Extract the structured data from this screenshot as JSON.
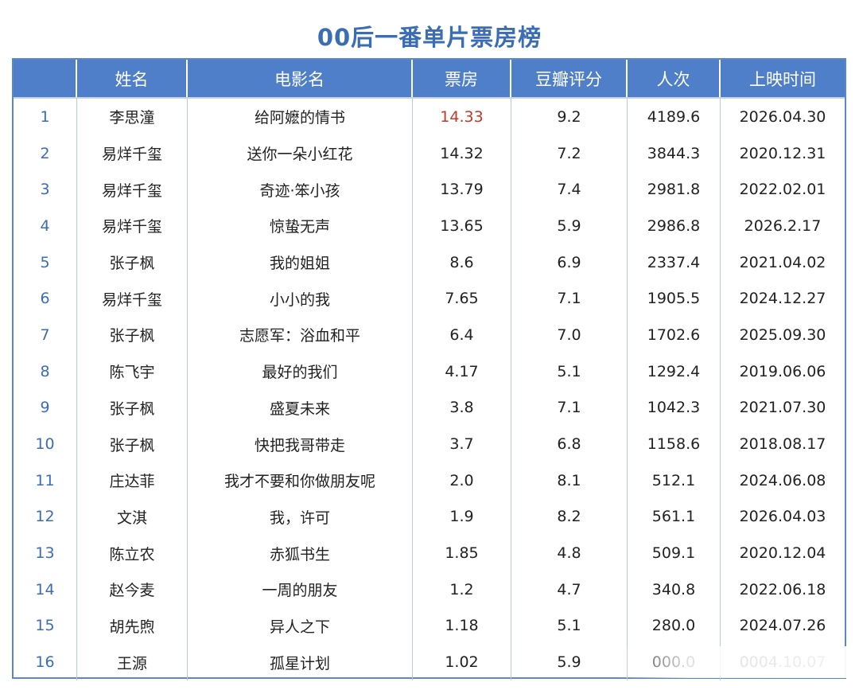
{
  "title": "00后一番单片票房榜",
  "columns": [
    "",
    "姓名",
    "电影名",
    "票房",
    "豆瓣评分",
    "人次",
    "上映时间"
  ],
  "rows": [
    {
      "rank": "1",
      "name": "李思潼",
      "film": "给阿嬷的情书",
      "box": "14.33",
      "score": "9.2",
      "people": "4189.6",
      "date": "2026.04.30"
    },
    {
      "rank": "2",
      "name": "易烊千玺",
      "film": "送你一朵小红花",
      "box": "14.32",
      "score": "7.2",
      "people": "3844.3",
      "date": "2020.12.31"
    },
    {
      "rank": "3",
      "name": "易烊千玺",
      "film": "奇迹·笨小孩",
      "box": "13.79",
      "score": "7.4",
      "people": "2981.8",
      "date": "2022.02.01"
    },
    {
      "rank": "4",
      "name": "易烊千玺",
      "film": "惊蛰无声",
      "box": "13.65",
      "score": "5.9",
      "people": "2986.8",
      "date": "2026.2.17"
    },
    {
      "rank": "5",
      "name": "张子枫",
      "film": "我的姐姐",
      "box": "8.6",
      "score": "6.9",
      "people": "2337.4",
      "date": "2021.04.02"
    },
    {
      "rank": "6",
      "name": "易烊千玺",
      "film": "小小的我",
      "box": "7.65",
      "score": "7.1",
      "people": "1905.5",
      "date": "2024.12.27"
    },
    {
      "rank": "7",
      "name": "张子枫",
      "film": "志愿军：浴血和平",
      "box": "6.4",
      "score": "7.0",
      "people": "1702.6",
      "date": "2025.09.30"
    },
    {
      "rank": "8",
      "name": "陈飞宇",
      "film": "最好的我们",
      "box": "4.17",
      "score": "5.1",
      "people": "1292.4",
      "date": "2019.06.06"
    },
    {
      "rank": "9",
      "name": "张子枫",
      "film": "盛夏未来",
      "box": "3.8",
      "score": "7.1",
      "people": "1042.3",
      "date": "2021.07.30"
    },
    {
      "rank": "10",
      "name": "张子枫",
      "film": "快把我哥带走",
      "box": "3.7",
      "score": "6.8",
      "people": "1158.6",
      "date": "2018.08.17"
    },
    {
      "rank": "11",
      "name": "庄达菲",
      "film": "我才不要和你做朋友呢",
      "box": "2.0",
      "score": "8.1",
      "people": "512.1",
      "date": "2024.06.08"
    },
    {
      "rank": "12",
      "name": "文淇",
      "film": "我，许可",
      "box": "1.9",
      "score": "8.2",
      "people": "561.1",
      "date": "2026.04.03"
    },
    {
      "rank": "13",
      "name": "陈立农",
      "film": "赤狐书生",
      "box": "1.85",
      "score": "4.8",
      "people": "509.1",
      "date": "2020.12.04"
    },
    {
      "rank": "14",
      "name": "赵今麦",
      "film": "一周的朋友",
      "box": "1.2",
      "score": "4.7",
      "people": "340.8",
      "date": "2022.06.18"
    },
    {
      "rank": "15",
      "name": "胡先煦",
      "film": "异人之下",
      "box": "1.18",
      "score": "5.1",
      "people": "280.0",
      "date": "2024.07.26"
    },
    {
      "rank": "16",
      "name": "王源",
      "film": "孤星计划",
      "box": "1.02",
      "score": "5.9",
      "people": "000.0",
      "date": "0004.10.07"
    }
  ],
  "colors": {
    "title": "#3b6db5",
    "header_bg": "#4f7fc9",
    "highlight": "#c0392b"
  }
}
